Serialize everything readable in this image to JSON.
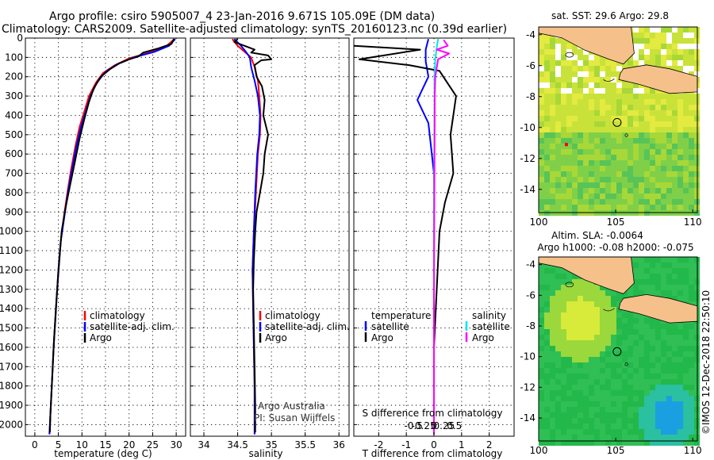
{
  "header": {
    "line1": "Argo profile: csiro 5905007_4 23-Jan-2016 9.671S 105.09E (DM data)",
    "line2": "Climatology: CARS2009. Satellite-adjusted climatology: synTS_20160123.nc (0.39d earlier)"
  },
  "credits": {
    "line1": "Argo Australia",
    "line2": "PI: Susan Wijffels",
    "stamp": "©IMOS 12-Dec-2018 22:50:10"
  },
  "colors": {
    "climatology": "#ff0000",
    "satellite": "#0000ff",
    "argo": "#000000",
    "satellite_salinity": "#00e5ee",
    "argo_salinity": "#ff00ff",
    "land": "#f5c08a",
    "sst_base": "#a8d838",
    "sla_base": "#22b84a"
  },
  "chart_data": [
    {
      "type": "line",
      "id": "temperature",
      "xlabel": "temperature (deg C)",
      "xticks": [
        0,
        5,
        10,
        15,
        20,
        25,
        30
      ],
      "xlim": [
        -2,
        32
      ],
      "yticks": [
        0,
        100,
        200,
        300,
        400,
        500,
        600,
        700,
        800,
        900,
        1000,
        1100,
        1200,
        1300,
        1400,
        1500,
        1600,
        1700,
        1800,
        1900,
        2000
      ],
      "ylim": [
        0,
        2060
      ],
      "grid": true,
      "legend": [
        "climatology",
        "satellite-adj. clim.",
        "Argo"
      ],
      "series": [
        {
          "name": "climatology",
          "color": "#ff0000",
          "points": [
            [
              29.6,
              5
            ],
            [
              28,
              40
            ],
            [
              25,
              70
            ],
            [
              20,
              105
            ],
            [
              17,
              140
            ],
            [
              14.5,
              180
            ],
            [
              13,
              230
            ],
            [
              11.5,
              300
            ],
            [
              10.5,
              380
            ],
            [
              9.5,
              460
            ],
            [
              8.6,
              560
            ],
            [
              7.7,
              680
            ],
            [
              6.9,
              800
            ],
            [
              6.2,
              920
            ],
            [
              5.5,
              1050
            ],
            [
              5.0,
              1200
            ],
            [
              4.5,
              1400
            ],
            [
              4.0,
              1600
            ],
            [
              3.6,
              1800
            ],
            [
              3.2,
              2000
            ],
            [
              3.1,
              2050
            ]
          ]
        },
        {
          "name": "satellite-adj. clim.",
          "color": "#0000ff",
          "points": [
            [
              29.8,
              5
            ],
            [
              28.5,
              40
            ],
            [
              25.5,
              70
            ],
            [
              21,
              100
            ],
            [
              17.5,
              135
            ],
            [
              15,
              175
            ],
            [
              13.2,
              230
            ],
            [
              11.8,
              300
            ],
            [
              10.8,
              380
            ],
            [
              9.8,
              460
            ],
            [
              8.8,
              560
            ],
            [
              7.9,
              680
            ],
            [
              7.0,
              800
            ],
            [
              6.3,
              920
            ],
            [
              5.5,
              1050
            ],
            [
              5.0,
              1200
            ],
            [
              4.5,
              1400
            ],
            [
              4.0,
              1600
            ],
            [
              3.6,
              1800
            ],
            [
              3.2,
              2000
            ],
            [
              3.1,
              2050
            ]
          ]
        },
        {
          "name": "Argo",
          "color": "#000000",
          "points": [
            [
              29.5,
              5
            ],
            [
              29.0,
              30
            ],
            [
              26.0,
              55
            ],
            [
              23.0,
              75
            ],
            [
              22.0,
              95
            ],
            [
              20.0,
              110
            ],
            [
              18.0,
              130
            ],
            [
              16.0,
              160
            ],
            [
              14.0,
              200
            ],
            [
              12.5,
              260
            ],
            [
              11.5,
              330
            ],
            [
              10.5,
              420
            ],
            [
              9.5,
              520
            ],
            [
              8.5,
              640
            ],
            [
              7.5,
              760
            ],
            [
              6.5,
              880
            ],
            [
              5.7,
              1000
            ],
            [
              5.2,
              1150
            ],
            [
              4.6,
              1350
            ],
            [
              4.1,
              1550
            ],
            [
              3.7,
              1750
            ],
            [
              3.3,
              1950
            ],
            [
              3.2,
              2040
            ]
          ]
        }
      ]
    },
    {
      "type": "line",
      "id": "salinity",
      "xlabel": "salinity",
      "xticks": [
        34,
        34.5,
        35,
        35.5,
        36
      ],
      "xlim": [
        33.8,
        36.15
      ],
      "yticks": [
        0,
        100,
        200,
        300,
        400,
        500,
        600,
        700,
        800,
        900,
        1000,
        1100,
        1200,
        1300,
        1400,
        1500,
        1600,
        1700,
        1800,
        1900,
        2000
      ],
      "ylim": [
        0,
        2060
      ],
      "grid": true,
      "legend": [
        "climatology",
        "satellite-adj. clim.",
        "Argo"
      ],
      "series": [
        {
          "name": "climatology",
          "color": "#ff0000",
          "points": [
            [
              34.42,
              5
            ],
            [
              34.5,
              40
            ],
            [
              34.6,
              70
            ],
            [
              34.7,
              100
            ],
            [
              34.75,
              150
            ],
            [
              34.8,
              220
            ],
            [
              34.82,
              300
            ],
            [
              34.84,
              400
            ],
            [
              34.83,
              500
            ],
            [
              34.8,
              600
            ],
            [
              34.77,
              800
            ],
            [
              34.74,
              1000
            ],
            [
              34.72,
              1200
            ],
            [
              34.73,
              1400
            ],
            [
              34.74,
              1600
            ],
            [
              34.75,
              1800
            ],
            [
              34.75,
              2050
            ]
          ]
        },
        {
          "name": "satellite-adj. clim.",
          "color": "#0000ff",
          "points": [
            [
              34.45,
              5
            ],
            [
              34.55,
              40
            ],
            [
              34.62,
              70
            ],
            [
              34.68,
              100
            ],
            [
              34.7,
              150
            ],
            [
              34.75,
              220
            ],
            [
              34.8,
              300
            ],
            [
              34.83,
              400
            ],
            [
              34.82,
              500
            ],
            [
              34.79,
              600
            ],
            [
              34.76,
              800
            ],
            [
              34.74,
              1000
            ],
            [
              34.72,
              1200
            ],
            [
              34.73,
              1400
            ],
            [
              34.74,
              1600
            ],
            [
              34.75,
              1800
            ],
            [
              34.75,
              2050
            ]
          ]
        },
        {
          "name": "Argo",
          "color": "#000000",
          "points": [
            [
              34.5,
              5
            ],
            [
              34.45,
              20
            ],
            [
              34.6,
              40
            ],
            [
              34.75,
              60
            ],
            [
              34.7,
              75
            ],
            [
              34.95,
              90
            ],
            [
              35.0,
              110
            ],
            [
              34.85,
              115
            ],
            [
              34.75,
              140
            ],
            [
              34.78,
              200
            ],
            [
              34.86,
              250
            ],
            [
              34.9,
              320
            ],
            [
              34.88,
              400
            ],
            [
              34.95,
              500
            ],
            [
              34.9,
              600
            ],
            [
              34.88,
              700
            ],
            [
              34.83,
              800
            ],
            [
              34.78,
              900
            ],
            [
              34.76,
              1000
            ],
            [
              34.74,
              1150
            ],
            [
              34.73,
              1300
            ],
            [
              34.74,
              1500
            ],
            [
              34.75,
              1700
            ],
            [
              34.76,
              1900
            ],
            [
              34.76,
              2040
            ]
          ]
        }
      ]
    },
    {
      "type": "line",
      "id": "difference",
      "xlabel": "T difference from climatology",
      "xlabel_top": "S difference from climatology",
      "xticks": [
        -2,
        -1,
        0,
        1,
        2
      ],
      "xticks_top": [
        -0.5,
        -0.25,
        0,
        0.25,
        0.5
      ],
      "xlim": [
        -2.9,
        2.9
      ],
      "yticks": [
        0,
        100,
        200,
        300,
        400,
        500,
        600,
        700,
        800,
        900,
        1000,
        1100,
        1200,
        1300,
        1400,
        1500,
        1600,
        1700,
        1800,
        1900,
        2000
      ],
      "ylim": [
        0,
        2060
      ],
      "grid": true,
      "legend_left_title": "temperature",
      "legend_right_title": "salinity",
      "legend_left": [
        "satellite",
        "Argo"
      ],
      "legend_right": [
        "satellite",
        "Argo"
      ],
      "series": [
        {
          "name": "temperature satellite",
          "color": "#0000ff",
          "points": [
            [
              -0.2,
              5
            ],
            [
              -0.3,
              60
            ],
            [
              -0.3,
              120
            ],
            [
              -0.2,
              200
            ],
            [
              -0.6,
              320
            ],
            [
              -0.2,
              440
            ],
            [
              0.0,
              700
            ],
            [
              0.0,
              1000
            ],
            [
              0.0,
              1300
            ],
            [
              0.0,
              1600
            ],
            [
              0.0,
              1900
            ],
            [
              0.0,
              2050
            ]
          ]
        },
        {
          "name": "temperature Argo",
          "color": "#000000",
          "points": [
            [
              -2.9,
              40
            ],
            [
              -0.5,
              60
            ],
            [
              -2.7,
              110
            ],
            [
              -0.9,
              140
            ],
            [
              0.2,
              170
            ],
            [
              0.8,
              300
            ],
            [
              0.6,
              500
            ],
            [
              0.7,
              700
            ],
            [
              0.4,
              850
            ],
            [
              0.2,
              1000
            ],
            [
              0.1,
              1300
            ],
            [
              0.0,
              1600
            ],
            [
              0.0,
              2050
            ]
          ]
        },
        {
          "name": "salinity satellite",
          "color": "#00e5ee",
          "points": [
            [
              0.15,
              5
            ],
            [
              0.1,
              50
            ],
            [
              0.05,
              110
            ],
            [
              0.02,
              200
            ],
            [
              0.02,
              400
            ],
            [
              0.0,
              800
            ],
            [
              0.0,
              1400
            ],
            [
              0.0,
              2050
            ]
          ]
        },
        {
          "name": "salinity Argo",
          "color": "#ff00ff",
          "points": [
            [
              0.35,
              10
            ],
            [
              0.5,
              40
            ],
            [
              0.1,
              60
            ],
            [
              0.55,
              80
            ],
            [
              0.15,
              110
            ],
            [
              0.05,
              200
            ],
            [
              0.03,
              300
            ],
            [
              0.02,
              600
            ],
            [
              0.01,
              1000
            ],
            [
              0.0,
              1400
            ],
            [
              0.0,
              2050
            ]
          ]
        }
      ]
    },
    {
      "type": "heatmap",
      "id": "sst_map",
      "title": "sat. SST: 29.6 Argo: 29.8",
      "xticks": [
        100,
        105,
        110
      ],
      "yticks": [
        -4,
        -6,
        -8,
        -10,
        -12,
        -14
      ],
      "xlim": [
        100,
        110.3
      ],
      "ylim": [
        -15.5,
        -3.5
      ],
      "argo_position": [
        105.09,
        -9.671
      ]
    },
    {
      "type": "heatmap",
      "id": "sla_map",
      "title": "Altim. SLA: -0.0064",
      "subtitle": "Argo h1000: -0.08 h2000: -0.075",
      "xticks": [
        100,
        105,
        110
      ],
      "yticks": [
        -4,
        -6,
        -8,
        -10,
        -12,
        -14
      ],
      "xlim": [
        100,
        110.3
      ],
      "ylim": [
        -15.5,
        -3.5
      ],
      "argo_position": [
        105.09,
        -9.671
      ]
    }
  ]
}
